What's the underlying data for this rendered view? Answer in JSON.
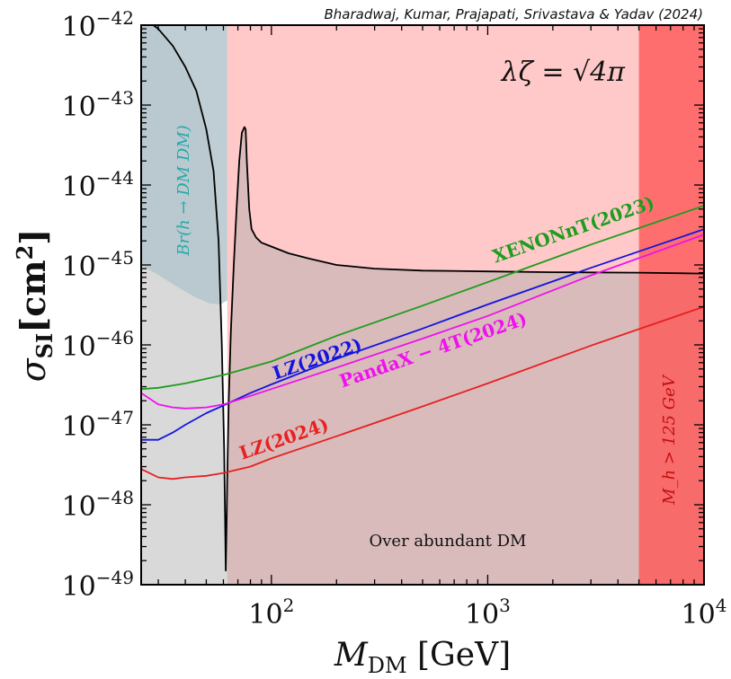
{
  "chart_data": {
    "type": "line",
    "title": "",
    "credit": "Bharadwaj, Kumar, Prajapati, Srivastava & Yadav (2024)",
    "annotation": "λζ = √4π",
    "xlabel": "M_DM [GeV]",
    "xlabel_parts": {
      "main": "M",
      "sub": "DM",
      "unit": " [GeV]"
    },
    "ylabel": "σ_SI [cm²]",
    "ylabel_parts": {
      "main": "σ",
      "sub": "SI",
      "unit": "[cm",
      "unit_exp": "2",
      "unit_close": "]"
    },
    "x_scale": "log",
    "y_scale": "log",
    "xlim": [
      25,
      10000
    ],
    "ylim": [
      1e-49,
      1e-42
    ],
    "x_ticks": [
      {
        "value": 100,
        "base": "10",
        "exp": "2"
      },
      {
        "value": 1000,
        "base": "10",
        "exp": "3"
      },
      {
        "value": 10000,
        "base": "10",
        "exp": "4"
      }
    ],
    "y_ticks": [
      {
        "value": 1e-49,
        "base": "10",
        "exp": "−49"
      },
      {
        "value": 1e-48,
        "base": "10",
        "exp": "−48"
      },
      {
        "value": 1e-47,
        "base": "10",
        "exp": "−47"
      },
      {
        "value": 1e-46,
        "base": "10",
        "exp": "−46"
      },
      {
        "value": 1e-45,
        "base": "10",
        "exp": "−45"
      },
      {
        "value": 1e-44,
        "base": "10",
        "exp": "−44"
      },
      {
        "value": 1e-43,
        "base": "10",
        "exp": "−43"
      },
      {
        "value": 1e-42,
        "base": "10",
        "exp": "−42"
      }
    ],
    "regions": [
      {
        "name": "excluded-pink",
        "color": "#ffc9c9",
        "x_range": [
          62.5,
          10000
        ],
        "y_range": [
          1e-49,
          1e-42
        ]
      },
      {
        "name": "higgs-invisible",
        "label": "Br(h → DM DM)",
        "color": "#b4c6cc",
        "boundary": [
          [
            25,
            1e-45
          ],
          [
            30,
            7.5e-46
          ],
          [
            36,
            5.5e-46
          ],
          [
            44,
            4e-46
          ],
          [
            52,
            3.3e-46
          ],
          [
            58,
            3.2e-46
          ],
          [
            62.5,
            3.6e-46
          ]
        ]
      },
      {
        "name": "heavy-mass",
        "label": "M_h > 125 GeV",
        "color": "#ff5757",
        "x_range": [
          5000,
          10000
        ]
      },
      {
        "name": "over-abundant",
        "label": "Over abundant DM",
        "color": "#d8d8d8"
      }
    ],
    "series": [
      {
        "name": "relic",
        "color": "#000000",
        "x": [
          25,
          30,
          35,
          40,
          45,
          50,
          54,
          57,
          59,
          60.5,
          61.5,
          62.2,
          62.5,
          63.5,
          65,
          67,
          69,
          71,
          73,
          75,
          76,
          77,
          79,
          81,
          85,
          90,
          100,
          120,
          150,
          200,
          300,
          500,
          1000,
          2000,
          5000,
          10000
        ],
        "y": [
          1.3e-42,
          9e-43,
          5.5e-43,
          3e-43,
          1.5e-43,
          5e-44,
          1.5e-44,
          2e-45,
          1e-46,
          5e-48,
          1.5e-49,
          8e-49,
          2e-48,
          2e-47,
          1.5e-46,
          1e-45,
          5e-45,
          2e-44,
          4.5e-44,
          5.3e-44,
          5e-44,
          2e-44,
          5e-45,
          2.8e-45,
          2.2e-45,
          1.9e-45,
          1.7e-45,
          1.4e-45,
          1.2e-45,
          1e-45,
          9e-46,
          8.5e-46,
          8.3e-46,
          8.1e-46,
          8e-46,
          7.8e-46
        ]
      },
      {
        "name": "XENONnT(2023)",
        "color": "#1e9c1e",
        "x": [
          25,
          30,
          40,
          60,
          100,
          200,
          500,
          1000,
          3000,
          10000
        ],
        "y": [
          2.8e-47,
          2.9e-47,
          3.3e-47,
          4.2e-47,
          6.2e-47,
          1.3e-46,
          3.1e-46,
          6.1e-46,
          1.8e-45,
          5.5e-45
        ]
      },
      {
        "name": "LZ(2022)",
        "color": "#1414e0",
        "x": [
          25,
          30,
          35,
          40,
          50,
          60,
          80,
          100,
          200,
          500,
          1000,
          3000,
          10000
        ],
        "y": [
          6.5e-48,
          6.5e-48,
          8e-48,
          1e-47,
          1.4e-47,
          1.75e-47,
          2.5e-47,
          3.2e-47,
          6.7e-47,
          1.6e-46,
          3.2e-46,
          9.2e-46,
          2.8e-45
        ]
      },
      {
        "name": "PandaX−4T(2024)",
        "color": "#ee11ee",
        "x": [
          25,
          30,
          35,
          40,
          50,
          60,
          80,
          100,
          200,
          500,
          1000,
          3000,
          10000
        ],
        "y": [
          2.5e-47,
          1.8e-47,
          1.65e-47,
          1.6e-47,
          1.65e-47,
          1.8e-47,
          2.3e-47,
          2.8e-47,
          5.2e-47,
          1.2e-46,
          2.3e-46,
          7.4e-46,
          2.4e-45
        ]
      },
      {
        "name": "LZ(2024)",
        "color": "#e82020",
        "x": [
          25,
          30,
          35,
          40,
          50,
          60,
          80,
          100,
          200,
          500,
          1000,
          3000,
          10000
        ],
        "y": [
          2.8e-48,
          2.2e-48,
          2.1e-48,
          2.2e-48,
          2.3e-48,
          2.5e-48,
          3e-48,
          3.8e-48,
          7.2e-48,
          1.7e-47,
          3.3e-47,
          9.8e-47,
          3e-46
        ]
      }
    ],
    "curve_labels": {
      "xenon": "XENONnT(2023)",
      "lz2022": "LZ(2022)",
      "pandax": "PandaX − 4T(2024)",
      "lz2024": "LZ(2024)"
    },
    "grid": false,
    "legend": "none"
  }
}
